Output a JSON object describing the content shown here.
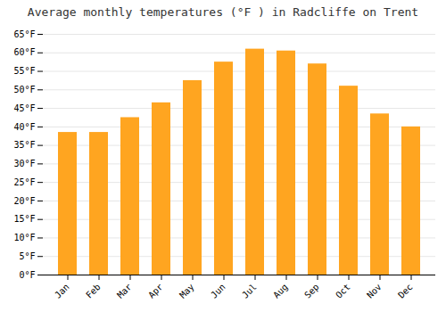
{
  "chart_data": {
    "type": "bar",
    "title": "Average monthly temperatures (°F ) in Radcliffe on Trent",
    "categories": [
      "Jan",
      "Feb",
      "Mar",
      "Apr",
      "May",
      "Jun",
      "Jul",
      "Aug",
      "Sep",
      "Oct",
      "Nov",
      "Dec"
    ],
    "values": [
      38.5,
      38.5,
      42.5,
      46.5,
      52.5,
      57.5,
      61.0,
      60.5,
      57.0,
      51.0,
      43.5,
      40.0
    ],
    "color": "#FFA520",
    "ylim": [
      0,
      65
    ],
    "yticks": [
      {
        "value": 0,
        "label": "0°F"
      },
      {
        "value": 5,
        "label": "5°F"
      },
      {
        "value": 10,
        "label": "10°F"
      },
      {
        "value": 15,
        "label": "15°F"
      },
      {
        "value": 20,
        "label": "20°F"
      },
      {
        "value": 25,
        "label": "25°F"
      },
      {
        "value": 30,
        "label": "30°F"
      },
      {
        "value": 35,
        "label": "35°F"
      },
      {
        "value": 40,
        "label": "40°F"
      },
      {
        "value": 45,
        "label": "45°F"
      },
      {
        "value": 50,
        "label": "50°F"
      },
      {
        "value": 55,
        "label": "55°F"
      },
      {
        "value": 60,
        "label": "60°F"
      },
      {
        "value": 65,
        "label": "65°F"
      }
    ],
    "grid": true
  }
}
